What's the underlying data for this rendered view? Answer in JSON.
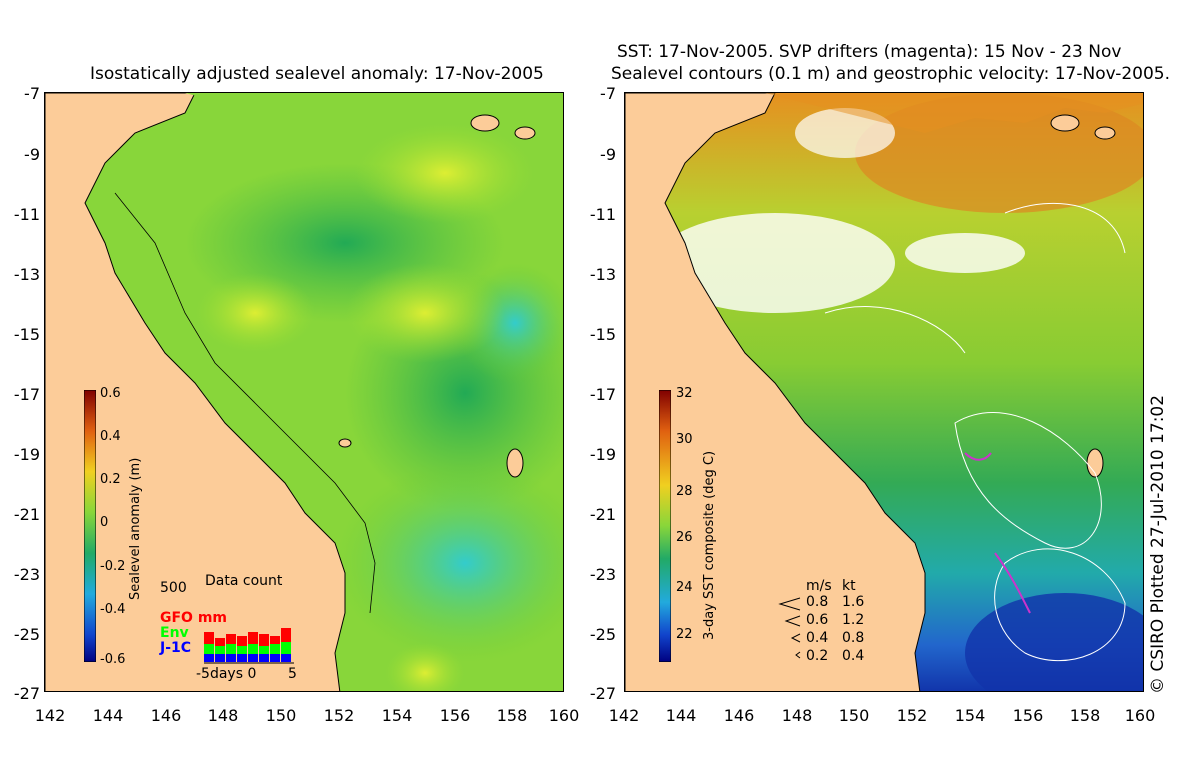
{
  "left_panel": {
    "title": "Isostatically adjusted sealevel anomaly: 17-Nov-2005",
    "colorbar": {
      "label": "Sealevel anomaly (m)",
      "ticks": [
        "0.6",
        "0.4",
        "0.2",
        "0",
        "-0.2",
        "-0.4",
        "-0.6"
      ]
    },
    "data_count": {
      "title": "Data count",
      "max_label": "500",
      "legend": [
        "GFO mm",
        "Env",
        "J-1C"
      ],
      "legend_colors": [
        "#ff0000",
        "#00ff00",
        "#0000ff"
      ],
      "axis_label": "-5days 0",
      "axis_right": "5"
    }
  },
  "right_panel": {
    "title_line1": "SST: 17-Nov-2005. SVP drifters (magenta): 15 Nov - 23 Nov",
    "title_line2": "Sealevel contours (0.1 m) and geostrophic velocity: 17-Nov-2005.",
    "colorbar": {
      "label": "3-day SST composite (deg C)",
      "ticks": [
        "32",
        "30",
        "28",
        "26",
        "24",
        "22"
      ]
    },
    "velocity_legend": {
      "header_ms": "m/s",
      "header_kt": "kt",
      "rows": [
        {
          "ms": "0.8",
          "kt": "1.6"
        },
        {
          "ms": "0.6",
          "kt": "1.2"
        },
        {
          "ms": "0.4",
          "kt": "0.8"
        },
        {
          "ms": "0.2",
          "kt": "0.4"
        }
      ]
    },
    "credit": "© CSIRO Plotted 27-Jul-2010 17:02"
  },
  "axes": {
    "y_ticks": [
      "-7",
      "-9",
      "-11",
      "-13",
      "-15",
      "-17",
      "-19",
      "-21",
      "-23",
      "-25",
      "-27"
    ],
    "x_ticks": [
      "142",
      "144",
      "146",
      "148",
      "150",
      "152",
      "154",
      "156",
      "158",
      "160"
    ]
  },
  "colors": {
    "land": "#fccc99",
    "sea_green": "#66cc33"
  }
}
